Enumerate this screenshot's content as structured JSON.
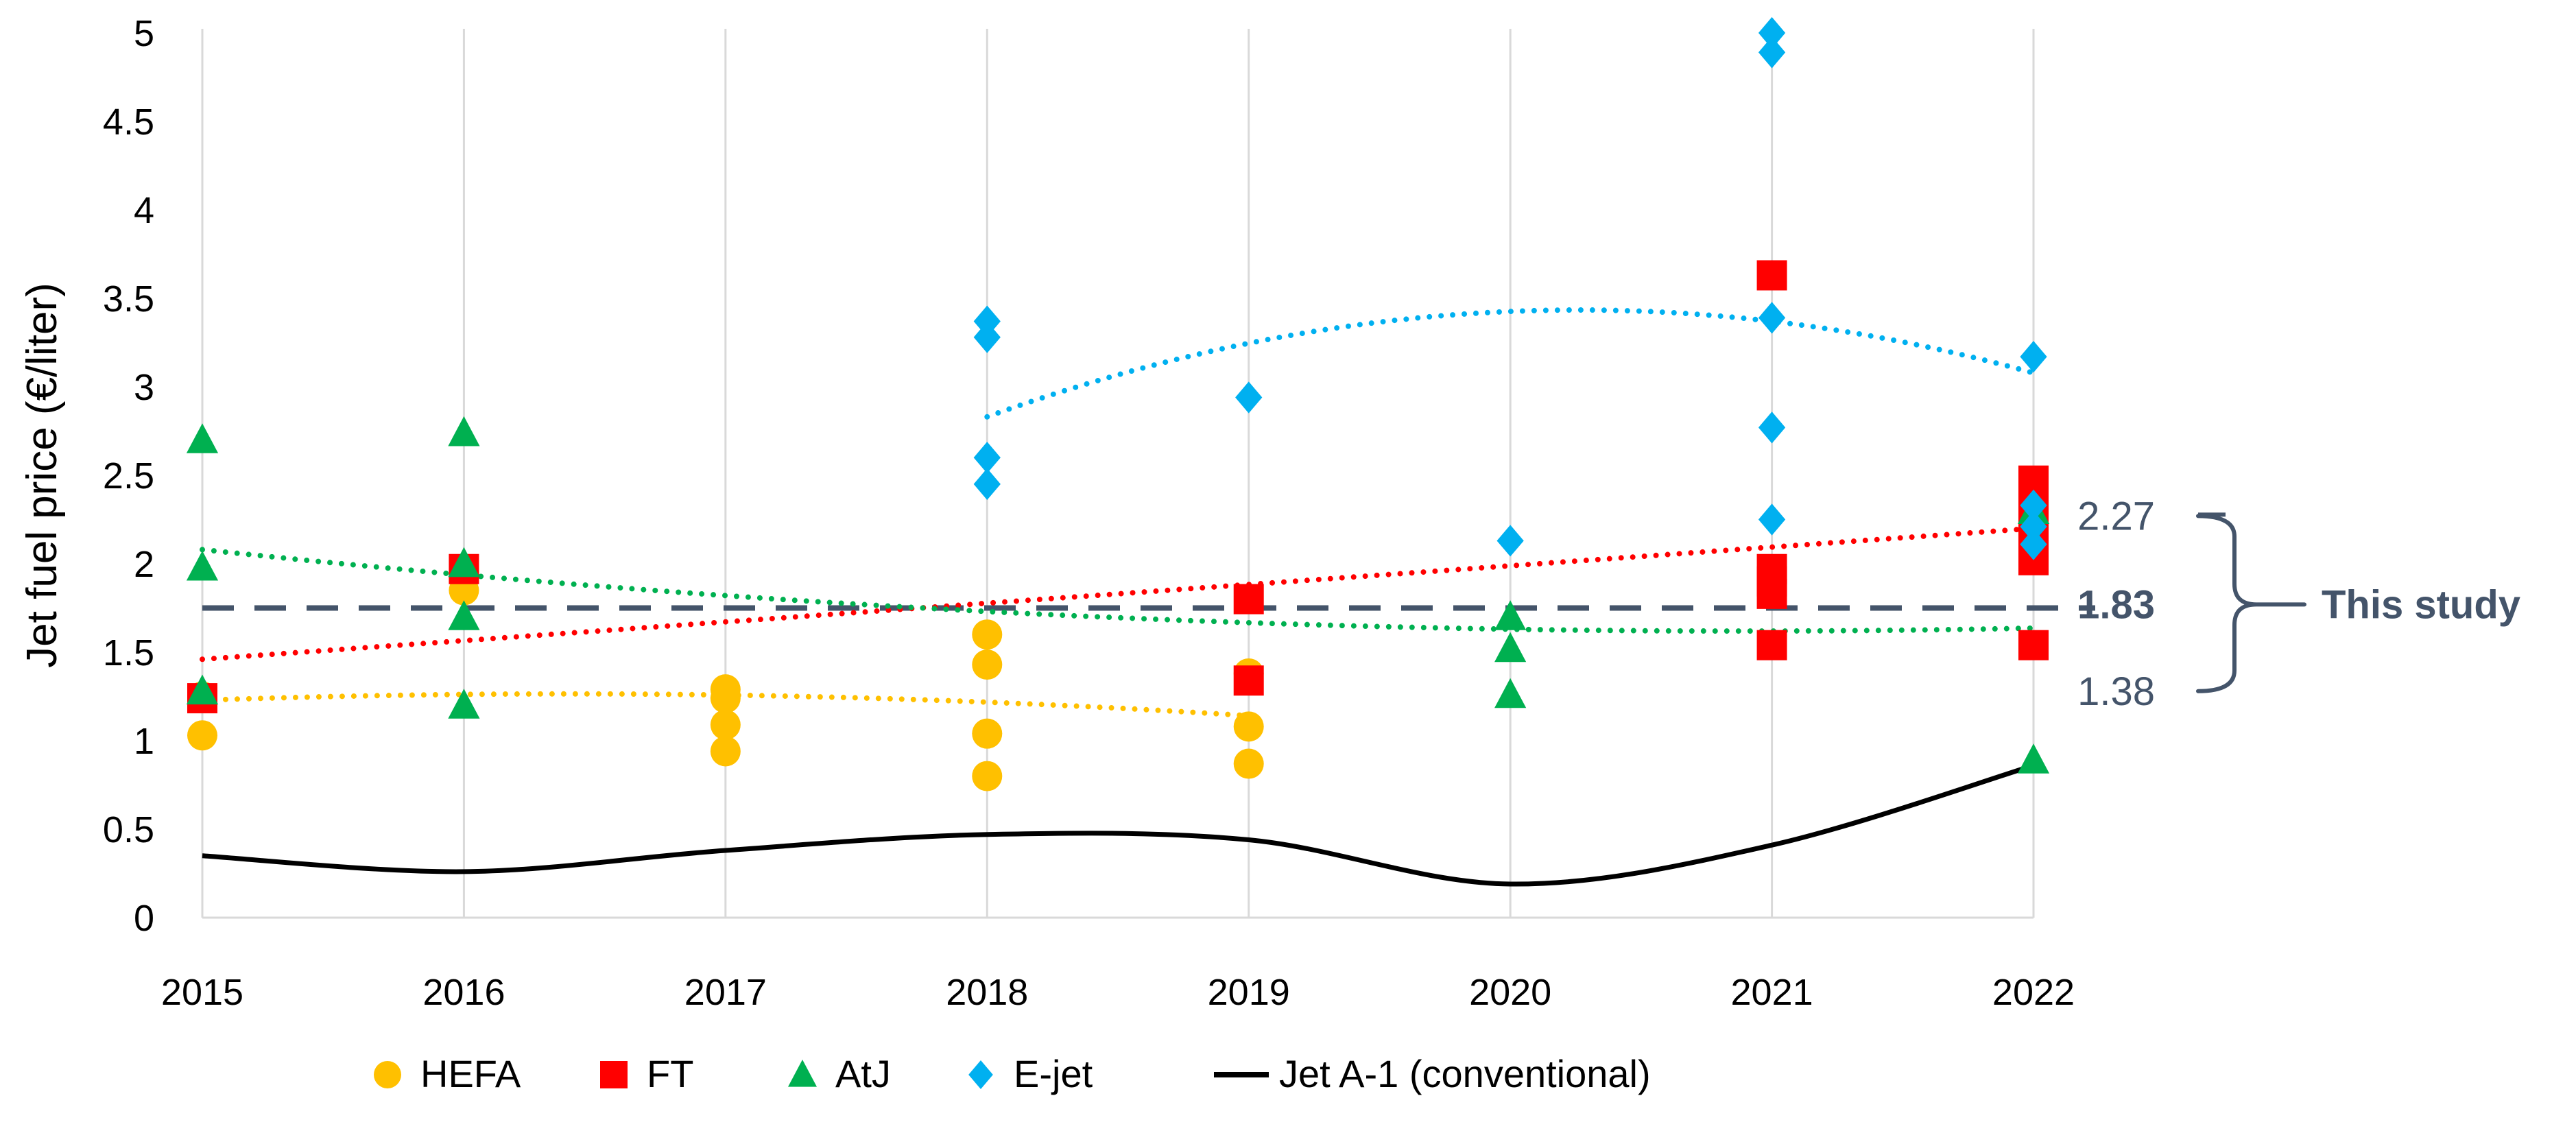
{
  "chart_data": {
    "type": "scatter",
    "title": "",
    "xlabel": "",
    "ylabel": "Jet fuel price (€/liter)",
    "x_ticks": [
      "2015",
      "2016",
      "2017",
      "2018",
      "2019",
      "2020",
      "2021",
      "2022"
    ],
    "y_ticks": [
      "0",
      "0.5",
      "1",
      "1.5",
      "2",
      "2.5",
      "3",
      "3.5",
      "4",
      "4.5",
      "5"
    ],
    "xlim": [
      2015,
      2022
    ],
    "ylim": [
      0,
      5
    ],
    "grid": "vertical",
    "legend_position": "bottom",
    "series": [
      {
        "name": "HEFA",
        "marker": "circle",
        "color": "#ffc000",
        "points": [
          [
            2015,
            1.03
          ],
          [
            2015,
            1.25
          ],
          [
            2016,
            1.85
          ],
          [
            2016,
            1.97
          ],
          [
            2017,
            0.94
          ],
          [
            2017,
            1.09
          ],
          [
            2017,
            1.24
          ],
          [
            2017,
            1.29
          ],
          [
            2018,
            0.8
          ],
          [
            2018,
            1.04
          ],
          [
            2018,
            1.43
          ],
          [
            2018,
            1.6
          ],
          [
            2019,
            0.87
          ],
          [
            2019,
            1.08
          ],
          [
            2019,
            1.38
          ]
        ],
        "trendline": {
          "style": "dotted",
          "x": [
            2015,
            2019
          ],
          "coefficients": [
            -0.0183,
            0.0513,
            1.2286
          ]
        }
      },
      {
        "name": "FT",
        "marker": "square",
        "color": "#ff0000",
        "points": [
          [
            2015,
            1.24
          ],
          [
            2016,
            1.97
          ],
          [
            2019,
            1.34
          ],
          [
            2019,
            1.8
          ],
          [
            2021,
            1.54
          ],
          [
            2021,
            1.83
          ],
          [
            2021,
            1.9
          ],
          [
            2021,
            1.97
          ],
          [
            2021,
            3.63
          ],
          [
            2022,
            1.54
          ],
          [
            2022,
            2.02
          ],
          [
            2022,
            2.16
          ],
          [
            2022,
            2.29
          ],
          [
            2022,
            2.41
          ],
          [
            2022,
            2.47
          ]
        ],
        "trendline": {
          "style": "dotted",
          "x": [
            2015,
            2022
          ],
          "coefficients": [
            0.0,
            0.1057,
            1.46
          ]
        }
      },
      {
        "name": "AtJ",
        "marker": "triangle",
        "color": "#00b050",
        "points": [
          [
            2015,
            1.28
          ],
          [
            2015,
            1.98
          ],
          [
            2015,
            2.7
          ],
          [
            2016,
            1.2
          ],
          [
            2016,
            1.7
          ],
          [
            2016,
            2.0
          ],
          [
            2016,
            2.74
          ],
          [
            2020,
            1.26
          ],
          [
            2020,
            1.52
          ],
          [
            2020,
            1.7
          ],
          [
            2022,
            0.89
          ],
          [
            2022,
            2.3
          ]
        ],
        "trendline": {
          "style": "dotted",
          "x": [
            2015,
            2022
          ],
          "coefficients": [
            0.0133,
            -0.1565,
            2.08
          ]
        }
      },
      {
        "name": "E-jet",
        "marker": "diamond",
        "color": "#00b0f0",
        "points": [
          [
            2018,
            2.45
          ],
          [
            2018,
            2.6
          ],
          [
            2018,
            3.28
          ],
          [
            2018,
            3.37
          ],
          [
            2019,
            2.94
          ],
          [
            2020,
            2.13
          ],
          [
            2021,
            2.25
          ],
          [
            2021,
            2.77
          ],
          [
            2021,
            3.39
          ],
          [
            2021,
            4.89
          ],
          [
            2021,
            5.0
          ],
          [
            2022,
            2.11
          ],
          [
            2022,
            2.21
          ],
          [
            2022,
            2.33
          ],
          [
            2022,
            3.17
          ]
        ],
        "trendline": {
          "style": "dotted",
          "x": [
            2018,
            2022
          ],
          "coefficients": [
            -0.1179,
            0.5336,
            2.8304
          ]
        }
      },
      {
        "name": "Jet A-1 (conventional)",
        "marker": "line",
        "color": "#000000",
        "smooth": true,
        "points": [
          [
            2015,
            0.35
          ],
          [
            2016,
            0.26
          ],
          [
            2017,
            0.38
          ],
          [
            2018,
            0.47
          ],
          [
            2019,
            0.44
          ],
          [
            2020,
            0.19
          ],
          [
            2021,
            0.41
          ],
          [
            2022,
            0.86
          ]
        ]
      }
    ],
    "reference_line": {
      "value": 1.75,
      "style": "dashed",
      "color": "#44546a"
    },
    "annotation": {
      "upper": "2.27",
      "middle": "1.83",
      "lower": "1.38",
      "label": "This study",
      "upper_y": 2.27,
      "middle_y": 1.77,
      "lower_y": 1.28
    }
  }
}
